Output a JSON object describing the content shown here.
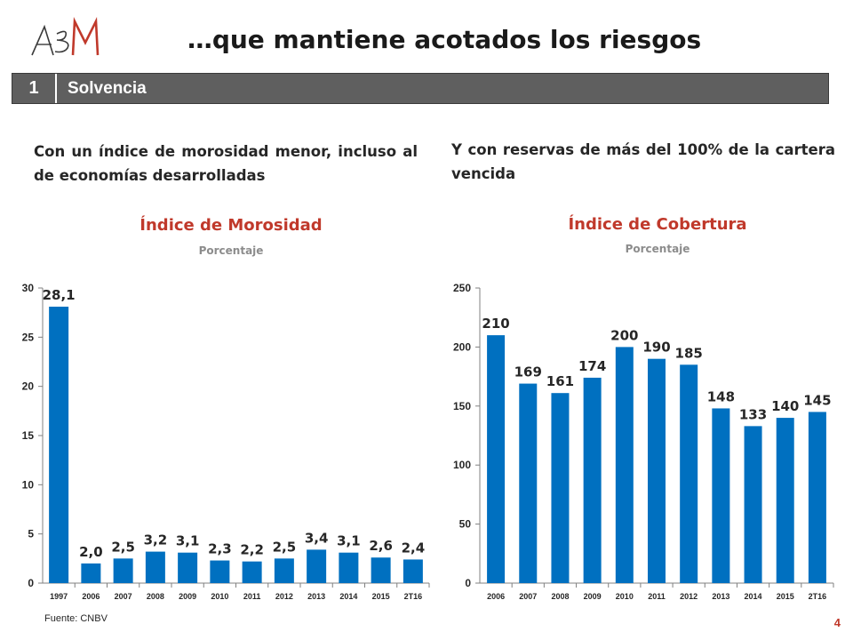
{
  "header": {
    "logo_text": "ABM",
    "title": "…que mantiene acotados los riesgos"
  },
  "section": {
    "number": "1",
    "label": "Solvencia"
  },
  "left_subtitle": "Con un índice de morosidad menor, incluso al de economías desarrolladas",
  "right_subtitle": "Y con reservas de más del 100% de la cartera vencida",
  "colors": {
    "bar": "#0070c0",
    "title_red": "#c0392b",
    "section_bar": "#5f5f5f"
  },
  "chart_data": [
    {
      "type": "bar",
      "title": "Índice de Morosidad",
      "subtitle": "Porcentaje",
      "xlabel": "",
      "ylabel": "",
      "categories": [
        "1997",
        "2006",
        "2007",
        "2008",
        "2009",
        "2010",
        "2011",
        "2012",
        "2013",
        "2014",
        "2015",
        "2T16"
      ],
      "values": [
        28.1,
        2.0,
        2.5,
        3.2,
        3.1,
        2.3,
        2.2,
        2.5,
        3.4,
        3.1,
        2.6,
        2.4
      ],
      "data_labels": [
        "28,1",
        "2,0",
        "2,5",
        "3,2",
        "3,1",
        "2,3",
        "2,2",
        "2,5",
        "3,4",
        "3,1",
        "2,6",
        "2,4"
      ],
      "ylim": [
        0,
        30
      ],
      "yticks": [
        0,
        5,
        10,
        15,
        20,
        25,
        30
      ],
      "grid": false,
      "legend": "none"
    },
    {
      "type": "bar",
      "title": "Índice de Cobertura",
      "subtitle": "Porcentaje",
      "xlabel": "",
      "ylabel": "",
      "categories": [
        "2006",
        "2007",
        "2008",
        "2009",
        "2010",
        "2011",
        "2012",
        "2013",
        "2014",
        "2015",
        "2T16"
      ],
      "values": [
        210,
        169,
        161,
        174,
        200,
        190,
        185,
        148,
        133,
        140,
        145
      ],
      "data_labels": [
        "210",
        "169",
        "161",
        "174",
        "200",
        "190",
        "185",
        "148",
        "133",
        "140",
        "145"
      ],
      "ylim": [
        0,
        250
      ],
      "yticks": [
        0,
        50,
        100,
        150,
        200,
        250
      ],
      "grid": false,
      "legend": "none"
    }
  ],
  "footer": {
    "source": "Fuente: CNBV",
    "page_number": "4"
  }
}
